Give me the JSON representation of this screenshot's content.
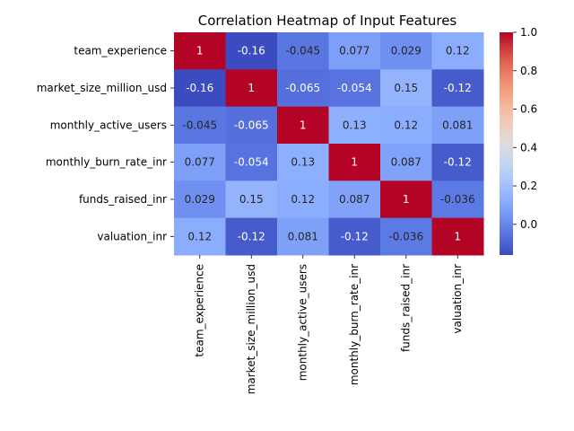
{
  "chart_data": {
    "type": "heatmap",
    "title": "Correlation Heatmap of Input Features",
    "xlabel": "",
    "ylabel": "",
    "row_labels": [
      "team_experience",
      "market_size_million_usd",
      "monthly_active_users",
      "monthly_burn_rate_inr",
      "funds_raised_inr",
      "valuation_inr"
    ],
    "col_labels": [
      "team_experience",
      "market_size_million_usd",
      "monthly_active_users",
      "monthly_burn_rate_inr",
      "funds_raised_inr",
      "valuation_inr"
    ],
    "values": [
      [
        1,
        -0.16,
        -0.045,
        0.077,
        0.029,
        0.12
      ],
      [
        -0.16,
        1,
        -0.065,
        -0.054,
        0.15,
        -0.12
      ],
      [
        -0.045,
        -0.065,
        1,
        0.13,
        0.12,
        0.081
      ],
      [
        0.077,
        -0.054,
        0.13,
        1,
        0.087,
        -0.12
      ],
      [
        0.029,
        0.15,
        0.12,
        0.087,
        1,
        -0.036
      ],
      [
        0.12,
        -0.12,
        0.081,
        -0.12,
        -0.036,
        1
      ]
    ],
    "annotations": [
      [
        "1",
        "-0.16",
        "-0.045",
        "0.077",
        "0.029",
        "0.12"
      ],
      [
        "-0.16",
        "1",
        "-0.065",
        "-0.054",
        "0.15",
        "-0.12"
      ],
      [
        "-0.045",
        "-0.065",
        "1",
        "0.13",
        "0.12",
        "0.081"
      ],
      [
        "0.077",
        "-0.054",
        "0.13",
        "1",
        "0.087",
        "-0.12"
      ],
      [
        "0.029",
        "0.15",
        "0.12",
        "0.087",
        "1",
        "-0.036"
      ],
      [
        "0.12",
        "-0.12",
        "0.081",
        "-0.12",
        "-0.036",
        "1"
      ]
    ],
    "colormap": "coolwarm",
    "vmin": -0.16,
    "vmax": 1.0,
    "colorbar": {
      "ticks": [
        0.0,
        0.2,
        0.4,
        0.6,
        0.8,
        1.0
      ],
      "tick_labels": [
        "0.0",
        "0.2",
        "0.4",
        "0.6",
        "0.8",
        "1.0"
      ]
    },
    "grid": false,
    "legend": "colorbar-right"
  }
}
